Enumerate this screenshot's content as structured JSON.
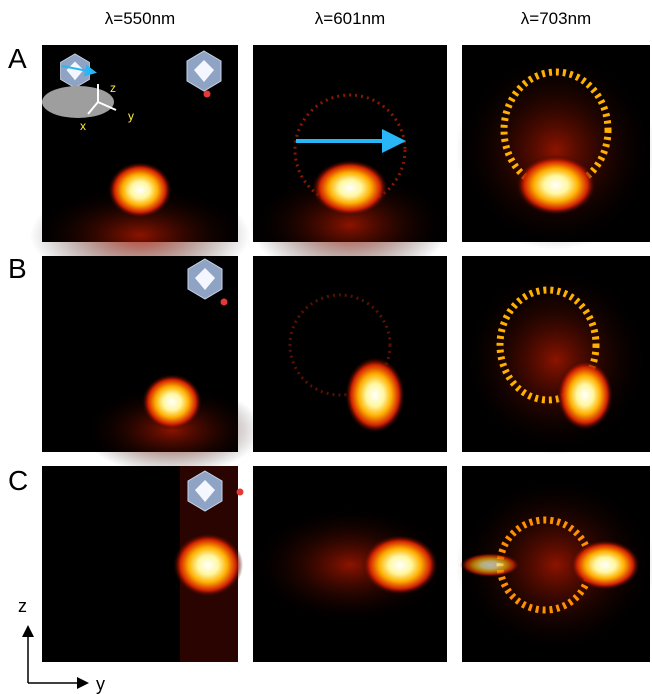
{
  "columns": [
    "λ=550nm",
    "λ=601nm",
    "λ=703nm"
  ],
  "rows": [
    "A",
    "B",
    "C"
  ],
  "axes": {
    "vertical": "z",
    "horizontal": "y"
  },
  "inset": {
    "z": "z",
    "y": "y",
    "x": "x"
  }
}
